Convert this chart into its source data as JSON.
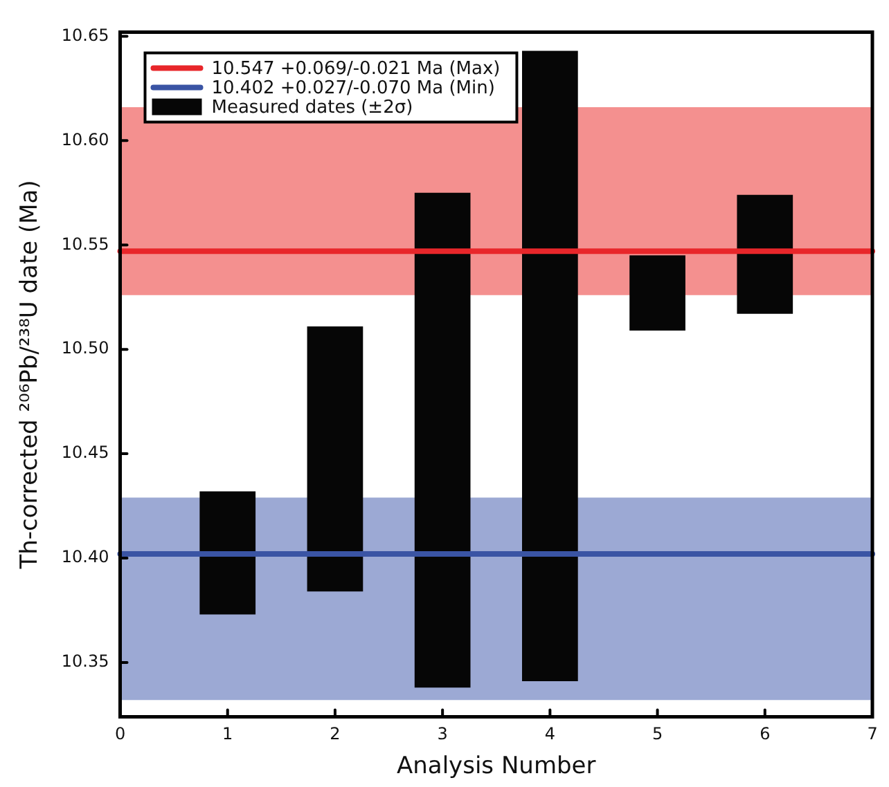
{
  "chart_data": {
    "type": "bar",
    "xlabel": "Analysis Number",
    "ylabel": "Th-corrected ²⁰⁶Pb/²³⁸U date (Ma)",
    "x": [
      1,
      2,
      3,
      4,
      5,
      6
    ],
    "series": [
      {
        "name": "Measured dates (±2σ)",
        "color": "#060606",
        "base": [
          10.373,
          10.384,
          10.338,
          10.341,
          10.509,
          10.517
        ],
        "values": [
          0.059,
          0.127,
          0.237,
          0.302,
          0.036,
          0.057
        ]
      }
    ],
    "xlim": [
      0,
      7
    ],
    "xticks": [
      0,
      1,
      2,
      3,
      4,
      5,
      6,
      7
    ],
    "ylim": [
      10.324,
      10.652
    ],
    "yticks": [
      10.35,
      {
        "value": 10.4,
        "label": "10.40"
      },
      10.45,
      {
        "value": 10.5,
        "label": "10.50"
      },
      10.55,
      {
        "value": 10.6,
        "label": "10.60"
      },
      10.65
    ],
    "ref_lines": [
      {
        "axis": "y",
        "value": 10.547,
        "label": "10.547 +0.069/-0.021 Ma (Max)",
        "color": "#e8262a"
      },
      {
        "axis": "y",
        "value": 10.402,
        "label": "10.402 +0.027/-0.070 Ma (Min)",
        "color": "#3a54a4"
      }
    ],
    "bands": [
      {
        "axis": "y",
        "from": 10.526,
        "to": 10.616,
        "color": "#f4908f"
      },
      {
        "axis": "y",
        "from": 10.332,
        "to": 10.429,
        "color": "#9ca9d4"
      }
    ],
    "grid": false,
    "legend": "top left"
  }
}
